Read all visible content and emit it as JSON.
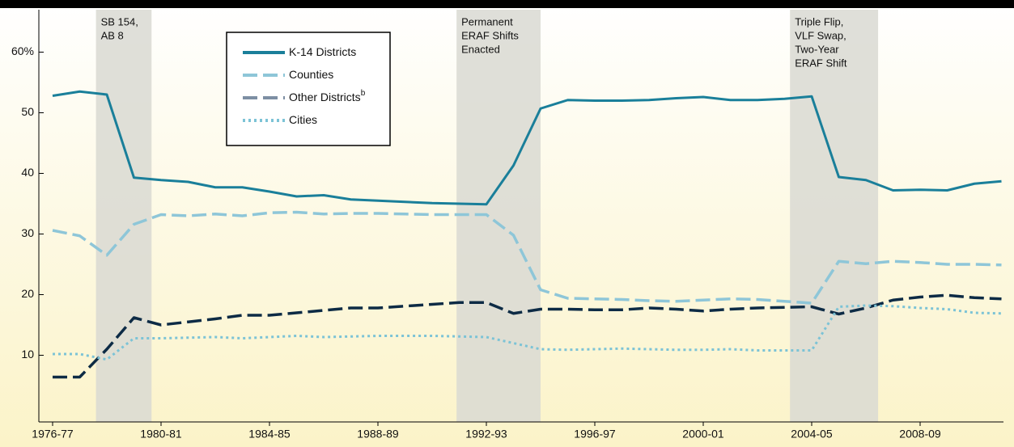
{
  "chart_data": {
    "type": "line",
    "categories": [
      "1976-77",
      null,
      null,
      null,
      "1980-81",
      null,
      null,
      null,
      "1984-85",
      null,
      null,
      null,
      "1988-89",
      null,
      null,
      null,
      "1992-93",
      null,
      null,
      null,
      "1996-97",
      null,
      null,
      null,
      "2000-01",
      null,
      null,
      null,
      "2004-05",
      null,
      null,
      null,
      "2008-09",
      null,
      null,
      null
    ],
    "ylim": [
      -1,
      67
    ],
    "yticks": [
      10,
      20,
      30,
      40,
      50,
      {
        "value": 60,
        "label": "60%"
      }
    ],
    "annotations": [
      {
        "lines": [
          "SB 154,",
          "AB 8"
        ]
      },
      {
        "lines": [
          "Permanent",
          "ERAF Shifts",
          "Enacted"
        ]
      },
      {
        "lines": [
          "Triple Flip,",
          "VLF Swap,",
          "Two-Year",
          "ERAF Shift"
        ]
      }
    ],
    "series": [
      {
        "name": "K-14 Districts",
        "color": "#1a7f9a",
        "dash": "solid",
        "values": [
          52.8,
          53.5,
          53,
          39.3,
          38.9,
          38.6,
          37.7,
          37.7,
          37,
          36.2,
          36.4,
          35.7,
          35.5,
          35.3,
          35.1,
          35,
          34.9,
          41.3,
          50.7,
          52.1,
          52,
          52,
          52.1,
          52.4,
          52.6,
          52.1,
          52.1,
          52.3,
          52.7,
          39.4,
          38.9,
          37.2,
          37.3,
          37.2,
          38.3,
          38.7
        ]
      },
      {
        "name": "Counties",
        "color": "#8ec6d8",
        "dash": "dashed",
        "values": [
          30.6,
          29.7,
          26.5,
          31.6,
          33.2,
          33,
          33.3,
          33,
          33.5,
          33.6,
          33.3,
          33.4,
          33.4,
          33.3,
          33.2,
          33.2,
          33.2,
          29.8,
          20.8,
          19.4,
          19.3,
          19.2,
          19,
          18.9,
          19.1,
          19.3,
          19.2,
          18.9,
          18.6,
          25.5,
          25.1,
          25.5,
          25.3,
          25,
          25,
          24.9
        ]
      },
      {
        "name": "Other Districts",
        "footnote": "b",
        "color": "#0d2b45",
        "legend_color": "#7d8fa3",
        "dash": "dashed",
        "values": [
          6.4,
          6.4,
          11,
          16.2,
          15,
          15.5,
          16,
          16.6,
          16.6,
          17,
          17.4,
          17.8,
          17.8,
          18.1,
          18.4,
          18.7,
          18.7,
          16.9,
          17.6,
          17.6,
          17.5,
          17.5,
          17.8,
          17.6,
          17.3,
          17.6,
          17.8,
          17.9,
          18,
          16.8,
          17.8,
          19.1,
          19.6,
          19.9,
          19.5,
          19.3
        ]
      },
      {
        "name": "Cities",
        "color": "#7cc3d6",
        "dash": "dotted",
        "values": [
          10.2,
          10.2,
          9.3,
          12.8,
          12.8,
          12.9,
          13,
          12.8,
          13,
          13.2,
          13,
          13.1,
          13.2,
          13.2,
          13.2,
          13.1,
          13,
          12,
          11,
          10.9,
          11,
          11.1,
          11,
          10.9,
          10.9,
          11,
          10.8,
          10.8,
          10.8,
          18,
          18.2,
          18.1,
          17.8,
          17.6,
          17,
          16.9
        ]
      }
    ]
  }
}
